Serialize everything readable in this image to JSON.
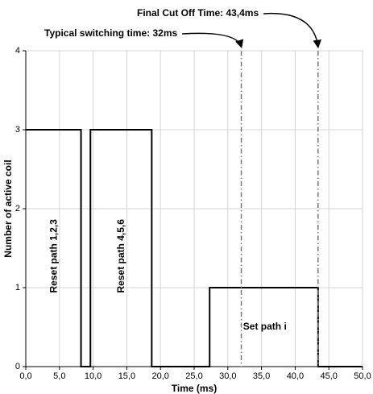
{
  "chart_data": {
    "type": "line",
    "xlabel": "Time (ms)",
    "ylabel": "Number of active coil",
    "x": [
      0,
      8.2,
      8.2,
      9.6,
      9.6,
      18.7,
      18.7,
      27.3,
      27.3,
      43.4,
      43.4,
      50
    ],
    "values": [
      3,
      3,
      0,
      0,
      3,
      3,
      0,
      0,
      1,
      1,
      0,
      0
    ],
    "color": "#000000",
    "xlim": [
      0,
      50
    ],
    "ylim": [
      0,
      4
    ],
    "xticks": [
      {
        "value": 0,
        "label": "0,0"
      },
      {
        "value": 5,
        "label": "5,0"
      },
      {
        "value": 10,
        "label": "10,0"
      },
      {
        "value": 15,
        "label": "15,0"
      },
      {
        "value": 20,
        "label": "20,0"
      },
      {
        "value": 25,
        "label": "25,0"
      },
      {
        "value": 30,
        "label": "30,0"
      },
      {
        "value": 35,
        "label": "35,0"
      },
      {
        "value": 40,
        "label": "40,0"
      },
      {
        "value": 45,
        "label": "45,0"
      },
      {
        "value": 50,
        "label": "50,0"
      }
    ],
    "yticks": [
      0,
      1,
      2,
      3,
      4
    ],
    "grid": true,
    "markers": [
      {
        "text": "Final Cut Off Time: 43,4ms",
        "x": 43.4
      },
      {
        "text": "Typical switching time: 32ms",
        "x": 32
      }
    ],
    "region_labels": [
      {
        "text": "Reset path 1,2,3",
        "x": 4.2,
        "y": 1.4,
        "rotate": true
      },
      {
        "text": "Reset path 4,5,6",
        "x": 14.2,
        "y": 1.4,
        "rotate": true
      },
      {
        "text": "Set path i",
        "x": 35.5,
        "y": 0.5,
        "rotate": false
      }
    ]
  }
}
